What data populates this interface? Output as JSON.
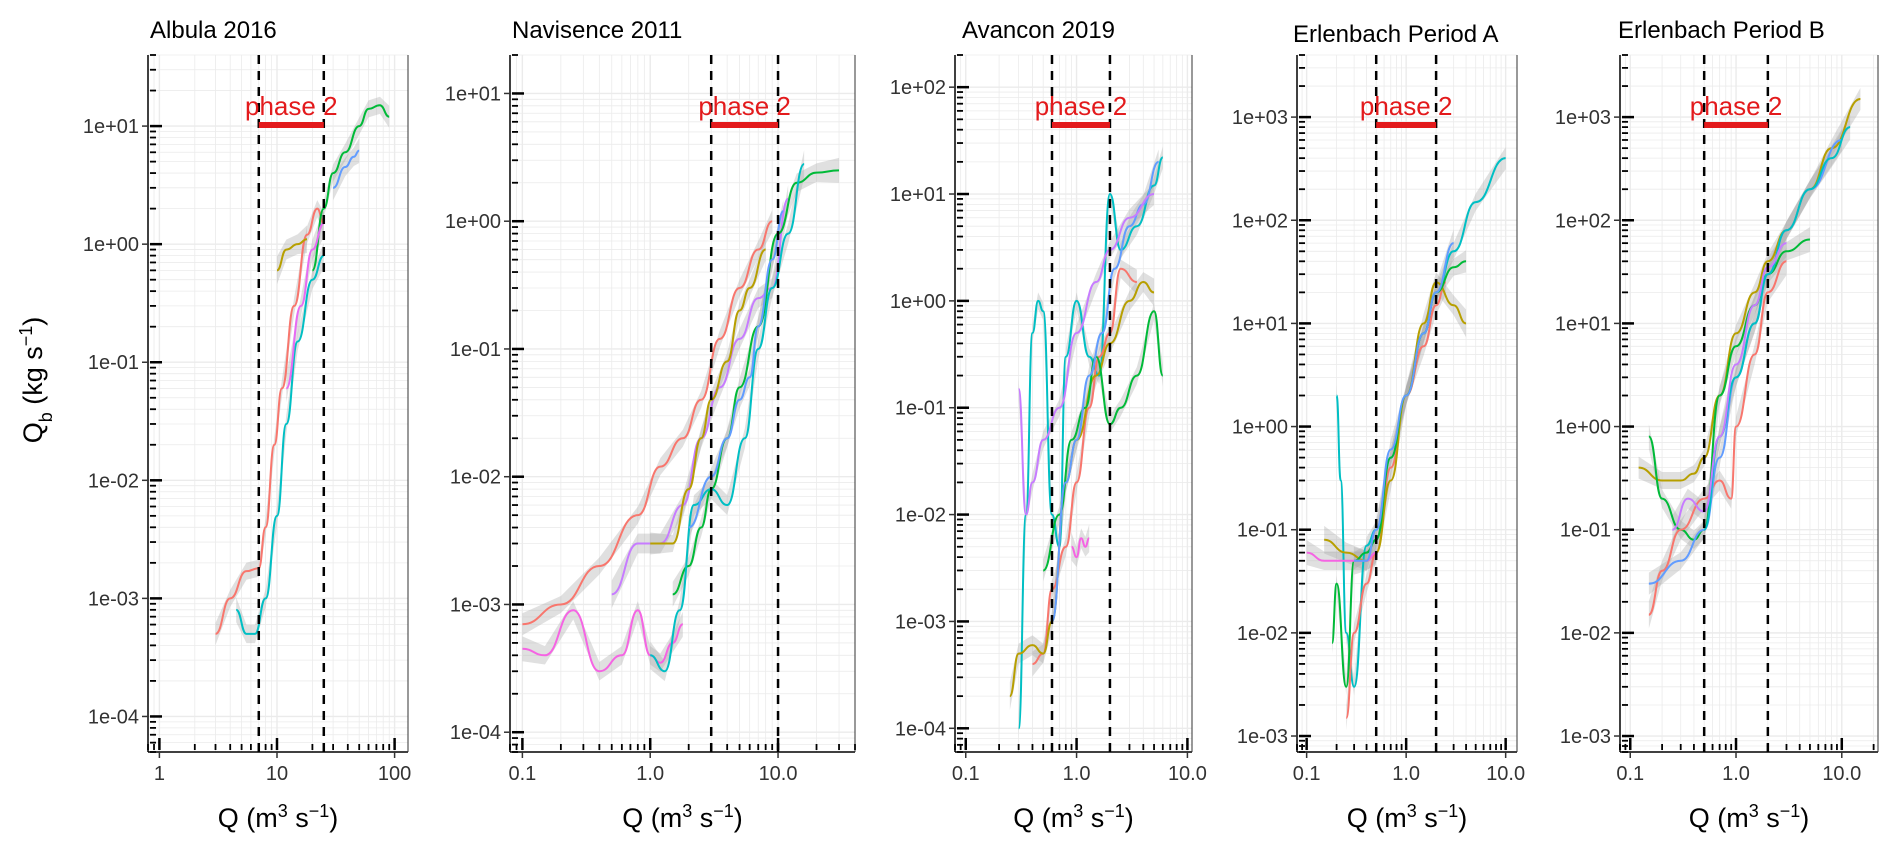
{
  "figure": {
    "ylabel_main": "Q",
    "ylabel_sub": "b",
    "ylabel_units_pre": " (kg s",
    "ylabel_units_exp": "−1",
    "ylabel_units_post": ")",
    "xlabel_pre": "Q (m",
    "xlabel_exp1": "3",
    "xlabel_mid": " s",
    "xlabel_exp2": "−1",
    "xlabel_post": ")"
  },
  "colors": {
    "phase_marker": "#e31a1c",
    "phase_line": "#000000",
    "grid": "#ebebeb",
    "confidence_band": "#a6a6a6",
    "series": [
      "#f8766d",
      "#b79f00",
      "#00ba38",
      "#00bfc4",
      "#619cff",
      "#f564e3",
      "#e76bf3",
      "#00a9ff",
      "#c77cff"
    ]
  },
  "chart_data": [
    {
      "type": "line",
      "title": "Albula 2016",
      "x_scale": "log",
      "y_scale": "log",
      "xlim": [
        0.8,
        130
      ],
      "ylim": [
        5e-05,
        40
      ],
      "x_ticks": [
        1,
        10,
        100
      ],
      "x_tick_labels": [
        "1",
        "10",
        "100"
      ],
      "y_ticks": [
        0.0001,
        0.001,
        0.01,
        0.1,
        1,
        10
      ],
      "y_tick_labels": [
        "1e-04",
        "1e-03",
        "1e-02",
        "1e-01",
        "1e+00",
        "1e+01"
      ],
      "phase_lines": [
        7,
        25
      ],
      "phase_label": "phase 2",
      "grid": true,
      "series": [
        {
          "color": "#f8766d",
          "x": [
            3,
            4,
            5.5,
            7,
            8,
            9.5,
            11,
            14,
            18,
            22,
            25
          ],
          "y": [
            0.0005,
            0.001,
            0.0017,
            0.0018,
            0.004,
            0.02,
            0.06,
            0.3,
            1.2,
            2.0,
            1.5
          ]
        },
        {
          "color": "#00bfc4",
          "x": [
            4.5,
            5.5,
            6.5,
            8,
            10,
            12,
            15,
            20,
            25
          ],
          "y": [
            0.0008,
            0.0005,
            0.0005,
            0.001,
            0.005,
            0.03,
            0.15,
            0.5,
            0.8
          ]
        },
        {
          "color": "#b79f00",
          "x": [
            10,
            12,
            15,
            18
          ],
          "y": [
            0.6,
            0.9,
            1.0,
            1.1
          ]
        },
        {
          "color": "#00ba38",
          "x": [
            20,
            25,
            30,
            38,
            50,
            60,
            75,
            90
          ],
          "y": [
            0.6,
            2.0,
            4.0,
            6.0,
            10,
            14,
            15,
            12
          ]
        },
        {
          "color": "#619cff",
          "x": [
            30,
            38,
            45,
            50
          ],
          "y": [
            3,
            4.5,
            5.5,
            6.2
          ]
        },
        {
          "color": "#e76bf3",
          "x": [
            12,
            16,
            20,
            25
          ],
          "y": [
            0.06,
            0.3,
            0.9,
            1.5
          ]
        }
      ]
    },
    {
      "type": "line",
      "title": "Navisence 2011",
      "x_scale": "log",
      "y_scale": "log",
      "xlim": [
        0.08,
        40
      ],
      "ylim": [
        7e-05,
        20
      ],
      "x_ticks": [
        0.1,
        1,
        10
      ],
      "x_tick_labels": [
        "0.1",
        "1.0",
        "10.0"
      ],
      "y_ticks": [
        0.0001,
        0.001,
        0.01,
        0.1,
        1,
        10
      ],
      "y_tick_labels": [
        "1e-04",
        "1e-03",
        "1e-02",
        "1e-01",
        "1e+00",
        "1e+01"
      ],
      "phase_lines": [
        3,
        10
      ],
      "phase_label": "phase 2",
      "grid": true,
      "series": [
        {
          "color": "#f8766d",
          "x": [
            0.1,
            0.2,
            0.4,
            0.8,
            1.2,
            1.8,
            2.5,
            3.5,
            5,
            7,
            9
          ],
          "y": [
            0.0007,
            0.001,
            0.002,
            0.005,
            0.012,
            0.02,
            0.04,
            0.12,
            0.3,
            0.6,
            1.0
          ]
        },
        {
          "color": "#f564e3",
          "x": [
            0.1,
            0.15,
            0.25,
            0.4,
            0.6,
            0.8,
            1.0,
            1.2,
            1.5,
            1.8
          ],
          "y": [
            0.00045,
            0.0004,
            0.0009,
            0.0003,
            0.0004,
            0.0009,
            0.0004,
            0.00035,
            0.0005,
            0.0007
          ]
        },
        {
          "color": "#c77cff",
          "x": [
            0.5,
            0.8,
            1.2,
            1.8,
            2.5,
            3.5,
            5,
            7,
            9,
            12
          ],
          "y": [
            0.0012,
            0.003,
            0.003,
            0.006,
            0.02,
            0.05,
            0.12,
            0.25,
            0.3,
            1.5
          ]
        },
        {
          "color": "#b79f00",
          "x": [
            1.0,
            1.5,
            2,
            2.5,
            3,
            4,
            5,
            6,
            8
          ],
          "y": [
            0.003,
            0.003,
            0.008,
            0.02,
            0.04,
            0.08,
            0.2,
            0.3,
            0.6
          ]
        },
        {
          "color": "#00ba38",
          "x": [
            1.5,
            2,
            2.5,
            3,
            4,
            5,
            7,
            10,
            14,
            20,
            30
          ],
          "y": [
            0.0012,
            0.002,
            0.004,
            0.008,
            0.02,
            0.05,
            0.15,
            0.8,
            2.0,
            2.4,
            2.5
          ]
        },
        {
          "color": "#00bfc4",
          "x": [
            1.0,
            1.3,
            1.7,
            2.2,
            3,
            4,
            5.5,
            7,
            9,
            12,
            16
          ],
          "y": [
            0.0004,
            0.0003,
            0.0009,
            0.006,
            0.008,
            0.006,
            0.02,
            0.1,
            0.3,
            0.8,
            2.8
          ]
        },
        {
          "color": "#619cff",
          "x": [
            2,
            3,
            4,
            5,
            6,
            7,
            9,
            11
          ],
          "y": [
            0.004,
            0.01,
            0.02,
            0.04,
            0.06,
            0.15,
            0.5,
            1.2
          ]
        }
      ]
    },
    {
      "type": "line",
      "title": "Avancon 2019",
      "x_scale": "log",
      "y_scale": "log",
      "xlim": [
        0.08,
        11
      ],
      "ylim": [
        6e-05,
        200
      ],
      "x_ticks": [
        0.1,
        1,
        10
      ],
      "x_tick_labels": [
        "0.1",
        "1.0",
        "10.0"
      ],
      "y_ticks": [
        0.0001,
        0.001,
        0.01,
        0.1,
        1,
        10,
        100
      ],
      "y_tick_labels": [
        "1e-04",
        "1e-03",
        "1e-02",
        "1e-01",
        "1e+00",
        "1e+01",
        "1e+02"
      ],
      "phase_lines": [
        0.6,
        2
      ],
      "phase_label": "phase 2",
      "grid": true,
      "series": [
        {
          "color": "#00bfc4",
          "x": [
            0.3,
            0.35,
            0.4,
            0.45,
            0.5,
            0.6,
            0.7,
            0.8,
            1.0,
            1.3,
            1.6,
            2.0,
            2.5,
            3.5,
            5,
            6
          ],
          "y": [
            0.0001,
            0.01,
            0.5,
            1.0,
            0.8,
            0.01,
            0.005,
            0.3,
            1.0,
            0.3,
            0.2,
            10,
            3,
            5,
            12,
            22
          ]
        },
        {
          "color": "#f8766d",
          "x": [
            0.4,
            0.5,
            0.6,
            0.8,
            1.0,
            1.3,
            1.6,
            2.0,
            2.5,
            3.5
          ],
          "y": [
            0.0004,
            0.0005,
            0.002,
            0.005,
            0.02,
            0.1,
            0.3,
            0.5,
            2.0,
            1.5
          ]
        },
        {
          "color": "#b79f00",
          "x": [
            0.25,
            0.3,
            0.4,
            0.5,
            0.6,
            0.8,
            1.0,
            1.5,
            2.0,
            3,
            4,
            5
          ],
          "y": [
            0.0002,
            0.0005,
            0.0006,
            0.0005,
            0.001,
            0.02,
            0.05,
            0.2,
            0.4,
            1.0,
            1.5,
            1.2
          ]
        },
        {
          "color": "#00ba38",
          "x": [
            0.5,
            0.7,
            0.9,
            1.2,
            1.5,
            2.0,
            2.5,
            3.5,
            5,
            6
          ],
          "y": [
            0.003,
            0.01,
            0.05,
            0.1,
            0.3,
            0.07,
            0.1,
            0.2,
            0.8,
            0.2
          ]
        },
        {
          "color": "#619cff",
          "x": [
            0.6,
            0.8,
            1.0,
            1.3,
            1.7,
            2.2,
            3,
            4,
            5.5
          ],
          "y": [
            0.001,
            0.02,
            0.05,
            0.2,
            0.5,
            2.0,
            5,
            8,
            20
          ]
        },
        {
          "color": "#f564e3",
          "x": [
            0.9,
            1.0,
            1.1,
            1.2,
            1.3
          ],
          "y": [
            0.005,
            0.004,
            0.006,
            0.005,
            0.006
          ]
        },
        {
          "color": "#c77cff",
          "x": [
            0.3,
            0.35,
            0.4,
            0.5,
            0.7,
            1.0,
            1.5,
            2.0,
            3,
            5
          ],
          "y": [
            0.15,
            0.01,
            0.02,
            0.05,
            0.1,
            0.5,
            1.5,
            3,
            6,
            10
          ]
        }
      ]
    },
    {
      "type": "line",
      "title": "Erlenbach Period A",
      "x_scale": "log",
      "y_scale": "log",
      "xlim": [
        0.08,
        13
      ],
      "ylim": [
        0.0007,
        4000
      ],
      "x_ticks": [
        0.1,
        1,
        10
      ],
      "x_tick_labels": [
        "0.1",
        "1.0",
        "10.0"
      ],
      "y_ticks": [
        0.001,
        0.01,
        0.1,
        1,
        10,
        100,
        1000
      ],
      "y_tick_labels": [
        "1e-03",
        "1e-02",
        "1e-01",
        "1e+00",
        "1e+01",
        "1e+02",
        "1e+03"
      ],
      "phase_lines": [
        0.5,
        2
      ],
      "phase_label": "phase 2",
      "grid": true,
      "series": [
        {
          "color": "#00bfc4",
          "x": [
            0.2,
            0.22,
            0.25,
            0.3,
            0.4,
            0.5,
            0.7,
            1.0,
            1.5,
            2.0,
            3,
            5,
            10
          ],
          "y": [
            2.0,
            0.3,
            0.01,
            0.003,
            0.07,
            0.1,
            0.5,
            2.0,
            8,
            20,
            50,
            150,
            400
          ]
        },
        {
          "color": "#f8766d",
          "x": [
            0.25,
            0.3,
            0.4,
            0.5,
            0.7,
            1.0,
            1.5,
            2.0,
            2.5
          ],
          "y": [
            0.0015,
            0.01,
            0.03,
            0.06,
            0.4,
            2.0,
            6,
            15,
            25
          ]
        },
        {
          "color": "#b79f00",
          "x": [
            0.15,
            0.25,
            0.4,
            0.5,
            0.7,
            1.0,
            1.5,
            2.0,
            3,
            4
          ],
          "y": [
            0.08,
            0.06,
            0.05,
            0.06,
            0.3,
            2.0,
            10,
            25,
            15,
            10
          ]
        },
        {
          "color": "#00ba38",
          "x": [
            0.18,
            0.2,
            0.25,
            0.3,
            0.4,
            0.5,
            0.7,
            1.0,
            1.5,
            2.0,
            3,
            4
          ],
          "y": [
            0.008,
            0.03,
            0.003,
            0.05,
            0.06,
            0.08,
            0.5,
            2.0,
            8,
            20,
            35,
            40
          ]
        },
        {
          "color": "#f564e3",
          "x": [
            0.1,
            0.15,
            0.2,
            0.3,
            0.4,
            0.5
          ],
          "y": [
            0.06,
            0.05,
            0.05,
            0.05,
            0.05,
            0.06
          ]
        },
        {
          "color": "#619cff",
          "x": [
            0.3,
            0.4,
            0.5,
            0.7,
            1.0,
            1.5,
            2.0,
            3
          ],
          "y": [
            0.05,
            0.05,
            0.1,
            0.6,
            2.0,
            8,
            20,
            60
          ]
        }
      ]
    },
    {
      "type": "line",
      "title": "Erlenbach Period B",
      "x_scale": "log",
      "y_scale": "log",
      "xlim": [
        0.08,
        22
      ],
      "ylim": [
        0.0007,
        4000
      ],
      "x_ticks": [
        0.1,
        1,
        10
      ],
      "x_tick_labels": [
        "0.1",
        "1.0",
        "10.0"
      ],
      "y_ticks": [
        0.001,
        0.01,
        0.1,
        1,
        10,
        100,
        1000
      ],
      "y_tick_labels": [
        "1e-03",
        "1e-02",
        "1e-01",
        "1e+00",
        "1e+01",
        "1e+02",
        "1e+03"
      ],
      "phase_lines": [
        0.5,
        2
      ],
      "phase_label": "phase 2",
      "grid": true,
      "series": [
        {
          "color": "#b79f00",
          "x": [
            0.12,
            0.2,
            0.3,
            0.4,
            0.5,
            0.7,
            1.0,
            1.5,
            2.0,
            3,
            5,
            8,
            15
          ],
          "y": [
            0.4,
            0.3,
            0.3,
            0.35,
            0.5,
            2.0,
            8,
            20,
            40,
            80,
            200,
            500,
            1500
          ]
        },
        {
          "color": "#00ba38",
          "x": [
            0.15,
            0.2,
            0.3,
            0.4,
            0.5,
            0.7,
            1.0,
            1.5,
            2.0,
            3,
            5
          ],
          "y": [
            0.8,
            0.2,
            0.1,
            0.08,
            0.1,
            2.0,
            6,
            15,
            30,
            50,
            65
          ]
        },
        {
          "color": "#f8766d",
          "x": [
            0.15,
            0.2,
            0.3,
            0.5,
            0.7,
            0.9,
            1.0,
            1.5,
            2.0,
            3
          ],
          "y": [
            0.015,
            0.04,
            0.1,
            0.2,
            0.3,
            0.2,
            1.0,
            5,
            20,
            40
          ]
        },
        {
          "color": "#619cff",
          "x": [
            0.15,
            0.3,
            0.5,
            0.7,
            1.0,
            1.5,
            2.0,
            3,
            5,
            10
          ],
          "y": [
            0.03,
            0.05,
            0.1,
            0.5,
            3,
            10,
            30,
            80,
            200,
            600
          ]
        },
        {
          "color": "#00bfc4",
          "x": [
            0.5,
            0.7,
            1.0,
            1.5,
            2.0,
            3,
            5,
            8,
            12
          ],
          "y": [
            0.1,
            0.8,
            3,
            10,
            30,
            80,
            200,
            400,
            800
          ]
        },
        {
          "color": "#c77cff",
          "x": [
            0.25,
            0.35,
            0.5,
            0.7,
            1.0,
            1.5,
            2.0,
            3
          ],
          "y": [
            0.1,
            0.2,
            0.15,
            0.8,
            4,
            15,
            35,
            60
          ]
        }
      ]
    }
  ]
}
